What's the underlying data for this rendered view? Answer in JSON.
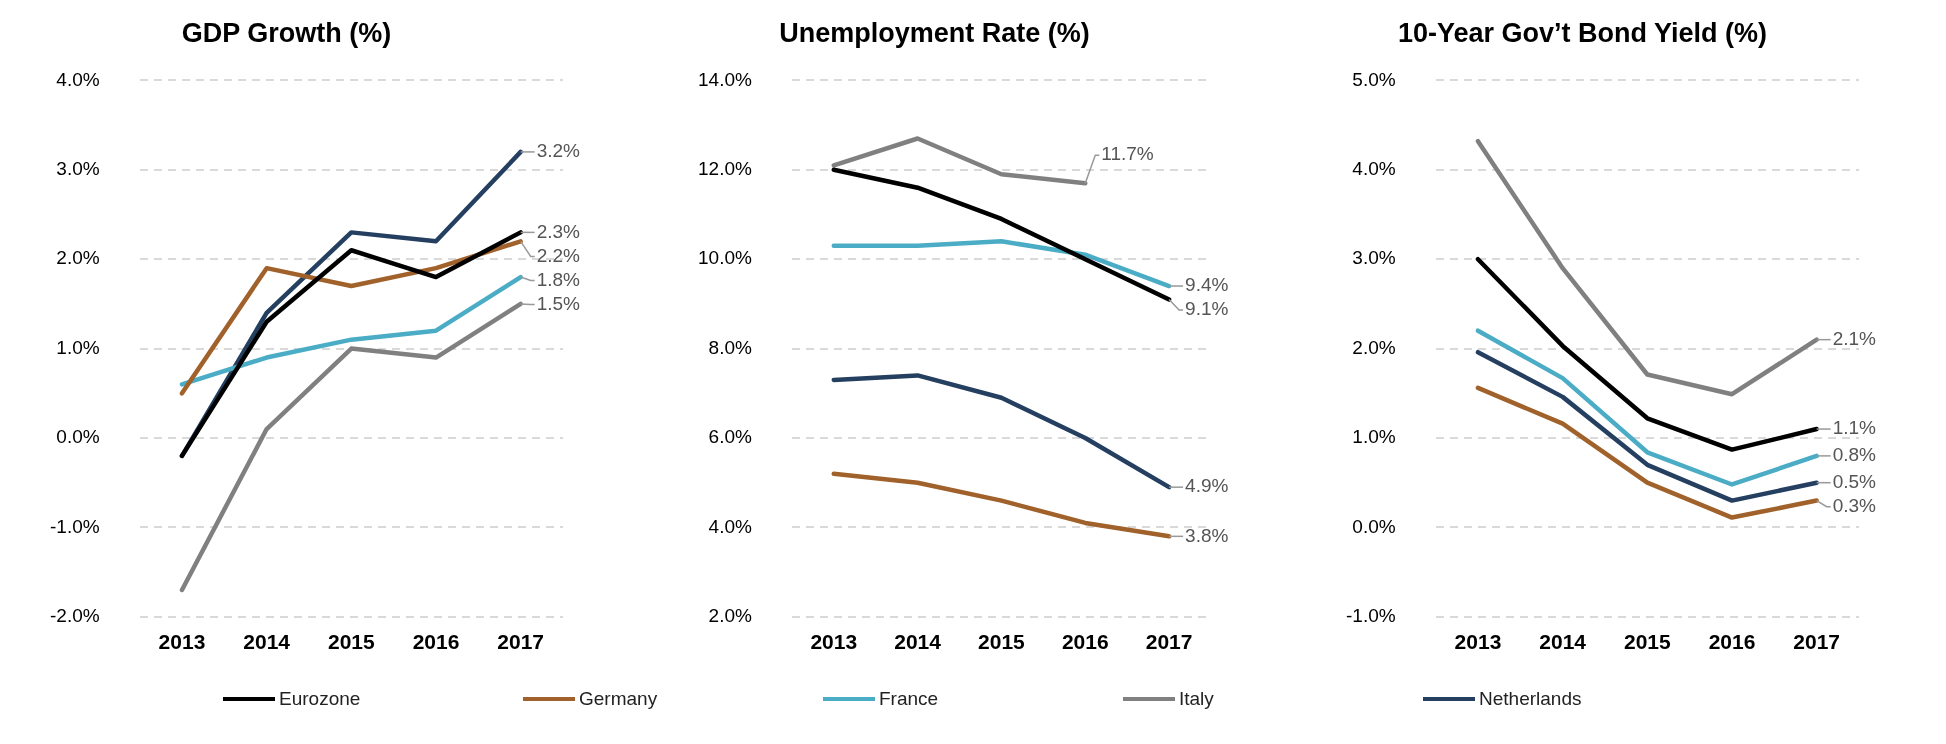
{
  "chart_data": [
    {
      "type": "line",
      "title": "GDP Growth (%)",
      "categories": [
        "2013",
        "2014",
        "2015",
        "2016",
        "2017"
      ],
      "ylim": [
        -2,
        4
      ],
      "yticks": [
        {
          "value": -2,
          "label": "-2.0%"
        },
        {
          "value": -1,
          "label": "-1.0%"
        },
        {
          "value": 0,
          "label": "0.0%"
        },
        {
          "value": 1,
          "label": "1.0%"
        },
        {
          "value": 2,
          "label": "2.0%"
        },
        {
          "value": 3,
          "label": "3.0%"
        },
        {
          "value": 4,
          "label": "4.0%"
        }
      ],
      "grid": "y",
      "legend": "bottom",
      "line_style": "solid",
      "series": [
        {
          "name": "Eurozone",
          "color": "#000000",
          "values": [
            -0.2,
            1.3,
            2.1,
            1.8,
            2.3
          ],
          "value_labels": [
            null,
            null,
            null,
            null,
            "2.3%"
          ]
        },
        {
          "name": "Germany",
          "color": "#a0612a",
          "values": [
            0.5,
            1.9,
            1.7,
            1.9,
            2.2
          ],
          "value_labels": [
            null,
            null,
            null,
            null,
            "2.2%"
          ]
        },
        {
          "name": "France",
          "color": "#4bacc6",
          "values": [
            0.6,
            0.9,
            1.1,
            1.2,
            1.8
          ],
          "value_labels": [
            null,
            null,
            null,
            null,
            "1.8%"
          ]
        },
        {
          "name": "Italy",
          "color": "#808080",
          "values": [
            -1.7,
            0.1,
            1.0,
            0.9,
            1.5
          ],
          "value_labels": [
            null,
            null,
            null,
            null,
            "1.5%"
          ]
        },
        {
          "name": "Netherlands",
          "color": "#243f60",
          "values": [
            -0.2,
            1.4,
            2.3,
            2.2,
            3.2
          ],
          "value_labels": [
            null,
            null,
            null,
            null,
            "3.2%"
          ]
        }
      ]
    },
    {
      "type": "line",
      "title": "Unemployment Rate (%)",
      "categories": [
        "2013",
        "2014",
        "2015",
        "2016",
        "2017"
      ],
      "ylim": [
        2,
        14
      ],
      "yticks": [
        {
          "value": 2,
          "label": "2.0%"
        },
        {
          "value": 4,
          "label": "4.0%"
        },
        {
          "value": 6,
          "label": "6.0%"
        },
        {
          "value": 8,
          "label": "8.0%"
        },
        {
          "value": 10,
          "label": "10.0%"
        },
        {
          "value": 12,
          "label": "12.0%"
        },
        {
          "value": 14,
          "label": "14.0%"
        }
      ],
      "grid": "y",
      "line_style": "solid",
      "series": [
        {
          "color": "#000000",
          "values": [
            12.0,
            11.6,
            10.9,
            10.0,
            9.1
          ],
          "value_labels": [
            null,
            null,
            null,
            null,
            "9.1%"
          ]
        },
        {
          "color": "#a0612a",
          "values": [
            5.2,
            5.0,
            4.6,
            4.1,
            3.8
          ],
          "value_labels": [
            null,
            null,
            null,
            null,
            "3.8%"
          ]
        },
        {
          "color": "#4bacc6",
          "values": [
            10.3,
            10.3,
            10.4,
            10.1,
            9.4
          ],
          "value_labels": [
            null,
            null,
            null,
            null,
            "9.4%"
          ]
        },
        {
          "color": "#808080",
          "values": [
            12.1,
            12.7,
            11.9,
            11.7,
            null
          ],
          "value_labels": [
            null,
            null,
            null,
            "11.7%",
            null
          ]
        },
        {
          "color": "#243f60",
          "values": [
            7.3,
            7.4,
            6.9,
            6.0,
            4.9
          ],
          "value_labels": [
            null,
            null,
            null,
            null,
            "4.9%"
          ]
        }
      ]
    },
    {
      "type": "line",
      "title": "10-Year Gov’t Bond Yield (%)",
      "categories": [
        "2013",
        "2014",
        "2015",
        "2016",
        "2017"
      ],
      "ylim": [
        -1,
        5
      ],
      "yticks": [
        {
          "value": -1,
          "label": "-1.0%"
        },
        {
          "value": 0,
          "label": "0.0%"
        },
        {
          "value": 1,
          "label": "1.0%"
        },
        {
          "value": 2,
          "label": "2.0%"
        },
        {
          "value": 3,
          "label": "3.0%"
        },
        {
          "value": 4,
          "label": "4.0%"
        },
        {
          "value": 5,
          "label": "5.0%"
        }
      ],
      "grid": "y",
      "line_style": "solid",
      "series": [
        {
          "color": "#000000",
          "values": [
            3.0,
            2.03,
            1.22,
            0.87,
            1.1
          ],
          "value_labels": [
            null,
            null,
            null,
            null,
            "1.1%"
          ]
        },
        {
          "color": "#a0612a",
          "values": [
            1.56,
            1.16,
            0.5,
            0.11,
            0.3
          ],
          "value_labels": [
            null,
            null,
            null,
            null,
            "0.3%"
          ]
        },
        {
          "color": "#4bacc6",
          "values": [
            2.2,
            1.67,
            0.84,
            0.48,
            0.8
          ],
          "value_labels": [
            null,
            null,
            null,
            null,
            "0.8%"
          ]
        },
        {
          "color": "#808080",
          "values": [
            4.32,
            2.9,
            1.71,
            1.49,
            2.1
          ],
          "value_labels": [
            null,
            null,
            null,
            null,
            "2.1%"
          ]
        },
        {
          "color": "#243f60",
          "values": [
            1.96,
            1.46,
            0.7,
            0.3,
            0.5
          ],
          "value_labels": [
            null,
            null,
            null,
            null,
            "0.5%"
          ]
        }
      ]
    }
  ]
}
